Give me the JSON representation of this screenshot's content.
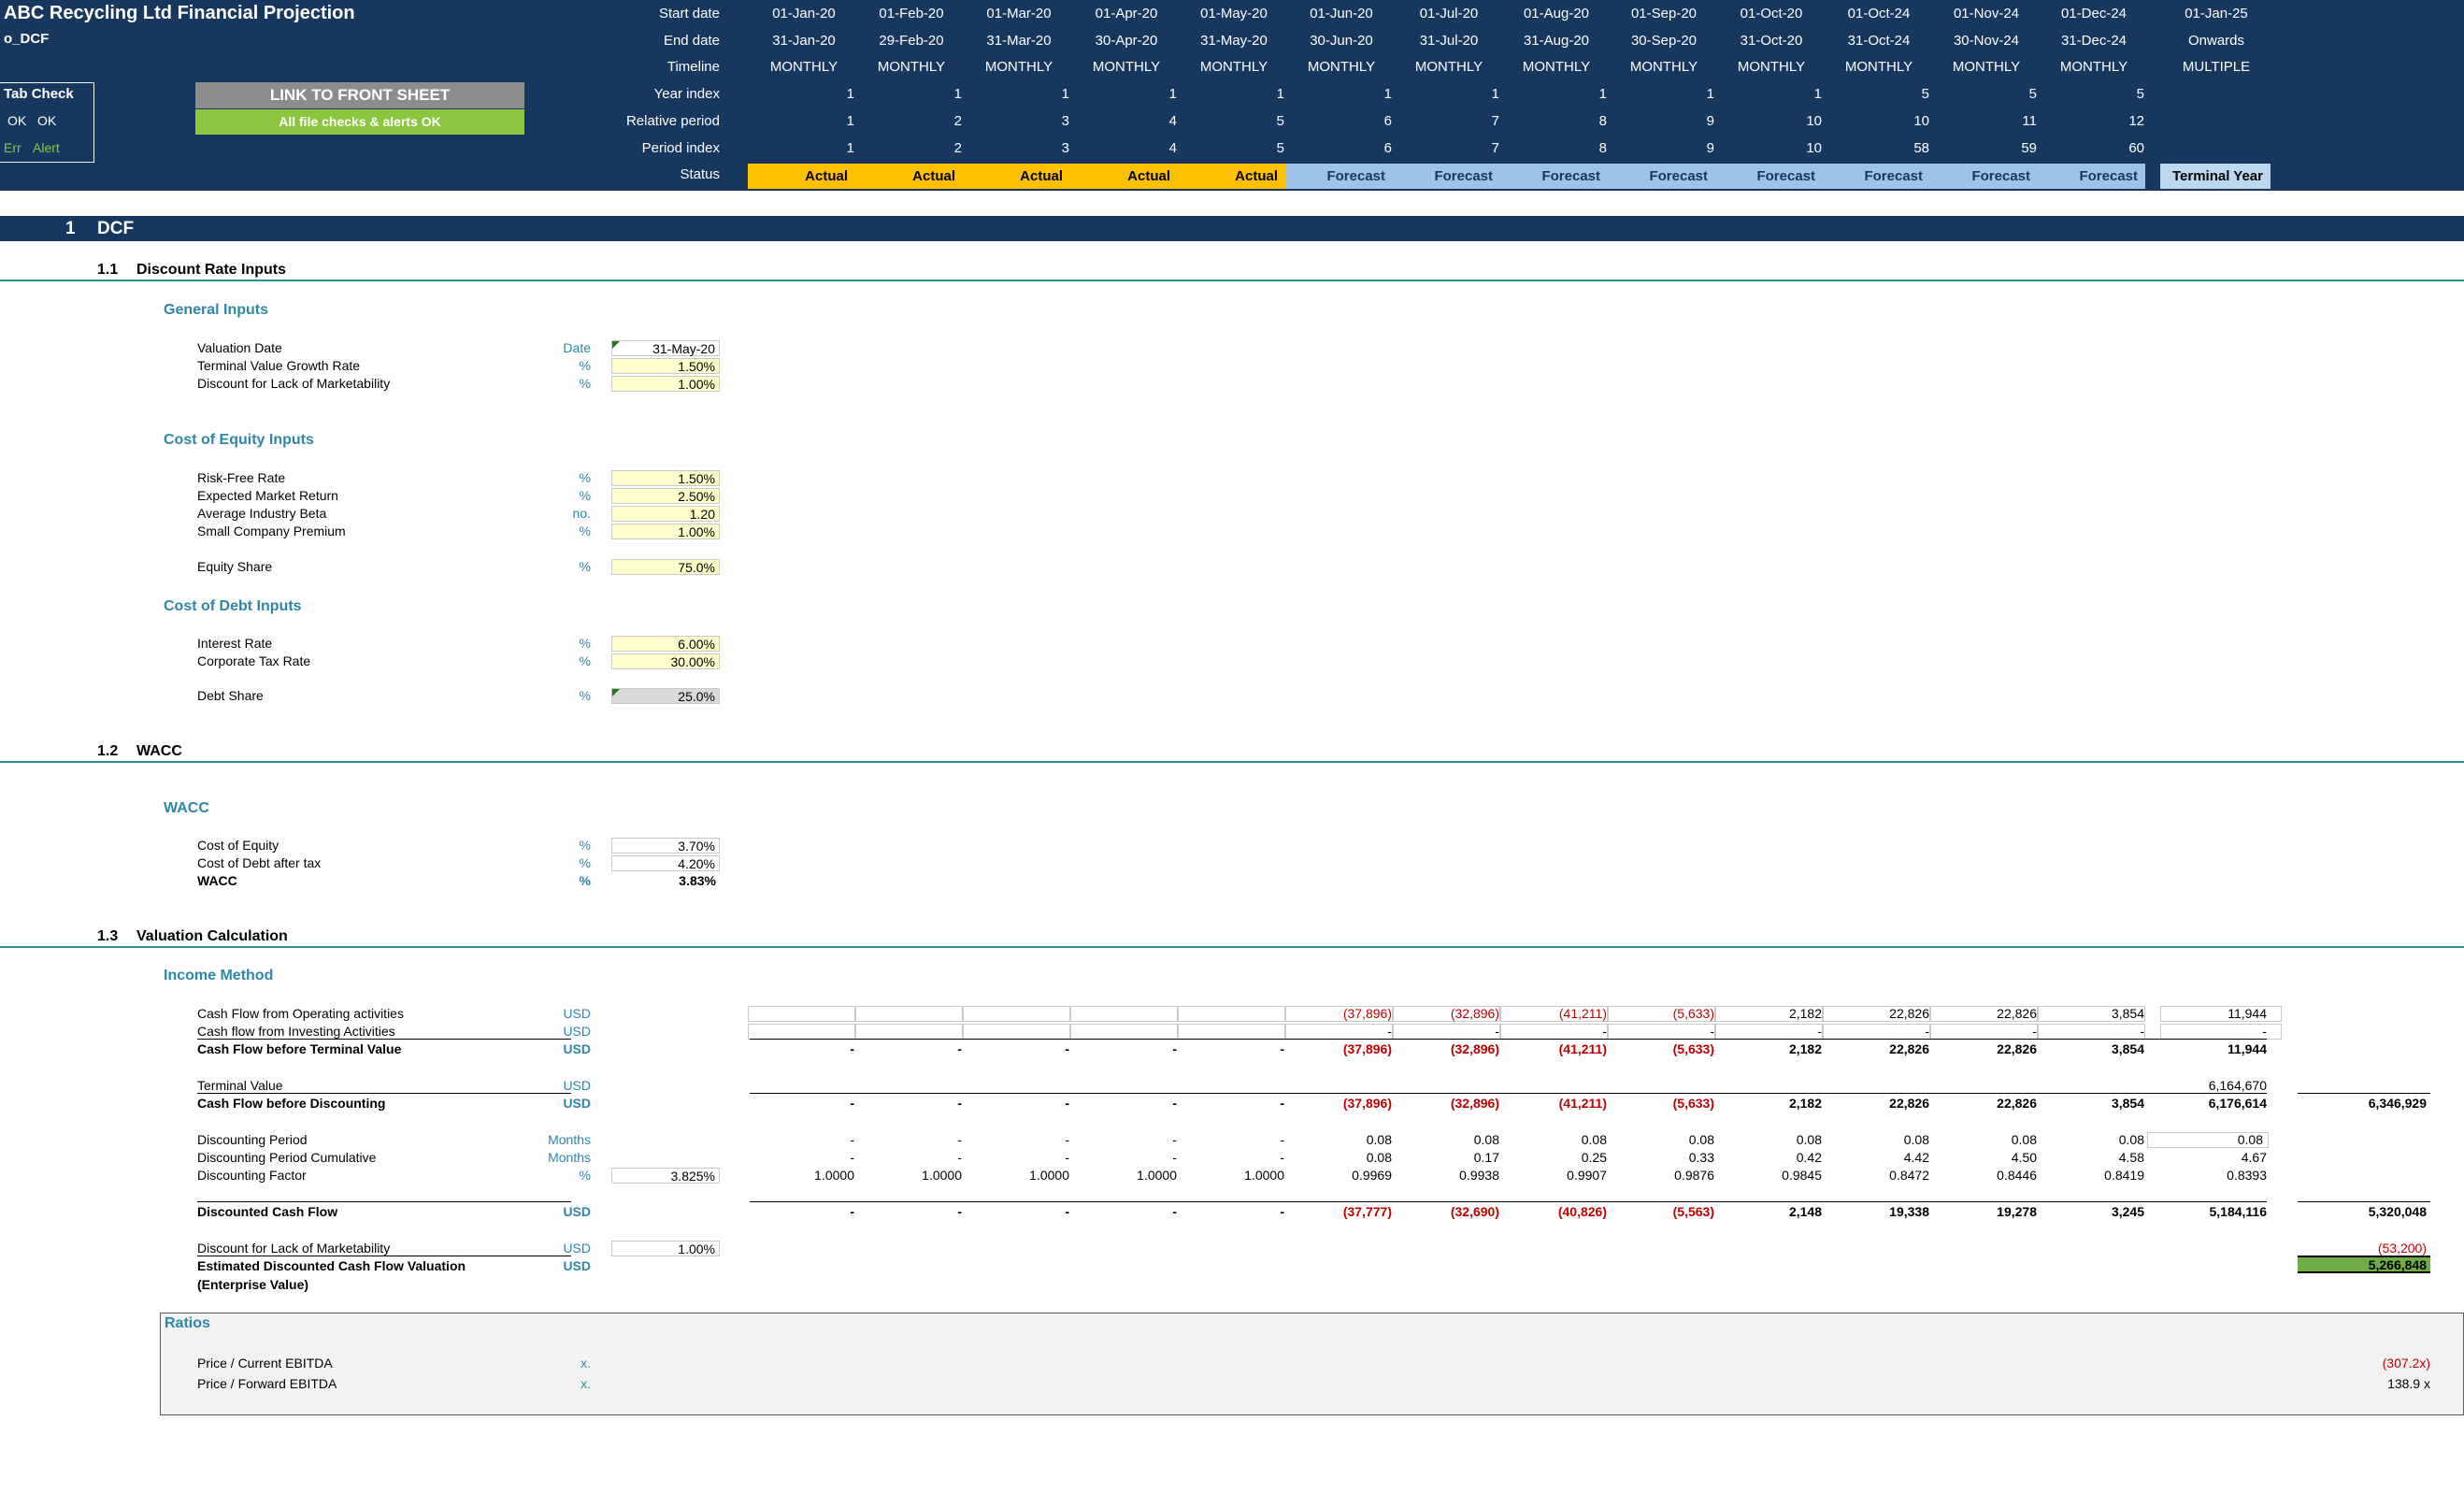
{
  "header": {
    "title": "ABC Recycling Ltd Financial Projection",
    "sheet_name": "o_DCF",
    "tab_check_label": "Tab Check",
    "ok_label1": "OK",
    "ok_label2": "OK",
    "err_label": "Err",
    "alert_label": "Alert",
    "link_button": "LINK TO FRONT SHEET",
    "checks_status": "All file checks & alerts OK",
    "row_labels": [
      "Start date",
      "End date",
      "Timeline",
      "Year index",
      "Relative period",
      "Period index",
      "Status"
    ],
    "periods": [
      {
        "start": "01-Jan-20",
        "end": "31-Jan-20",
        "timeline": "MONTHLY",
        "year": "1",
        "rel": "1",
        "idx": "1",
        "status": "Actual"
      },
      {
        "start": "01-Feb-20",
        "end": "29-Feb-20",
        "timeline": "MONTHLY",
        "year": "1",
        "rel": "2",
        "idx": "2",
        "status": "Actual"
      },
      {
        "start": "01-Mar-20",
        "end": "31-Mar-20",
        "timeline": "MONTHLY",
        "year": "1",
        "rel": "3",
        "idx": "3",
        "status": "Actual"
      },
      {
        "start": "01-Apr-20",
        "end": "30-Apr-20",
        "timeline": "MONTHLY",
        "year": "1",
        "rel": "4",
        "idx": "4",
        "status": "Actual"
      },
      {
        "start": "01-May-20",
        "end": "31-May-20",
        "timeline": "MONTHLY",
        "year": "1",
        "rel": "5",
        "idx": "5",
        "status": "Actual"
      },
      {
        "start": "01-Jun-20",
        "end": "30-Jun-20",
        "timeline": "MONTHLY",
        "year": "1",
        "rel": "6",
        "idx": "6",
        "status": "Forecast"
      },
      {
        "start": "01-Jul-20",
        "end": "31-Jul-20",
        "timeline": "MONTHLY",
        "year": "1",
        "rel": "7",
        "idx": "7",
        "status": "Forecast"
      },
      {
        "start": "01-Aug-20",
        "end": "31-Aug-20",
        "timeline": "MONTHLY",
        "year": "1",
        "rel": "8",
        "idx": "8",
        "status": "Forecast"
      },
      {
        "start": "01-Sep-20",
        "end": "30-Sep-20",
        "timeline": "MONTHLY",
        "year": "1",
        "rel": "9",
        "idx": "9",
        "status": "Forecast"
      },
      {
        "start": "01-Oct-20",
        "end": "31-Oct-20",
        "timeline": "MONTHLY",
        "year": "1",
        "rel": "10",
        "idx": "10",
        "status": "Forecast"
      },
      {
        "start": "01-Oct-24",
        "end": "31-Oct-24",
        "timeline": "MONTHLY",
        "year": "5",
        "rel": "10",
        "idx": "58",
        "status": "Forecast"
      },
      {
        "start": "01-Nov-24",
        "end": "30-Nov-24",
        "timeline": "MONTHLY",
        "year": "5",
        "rel": "11",
        "idx": "59",
        "status": "Forecast"
      },
      {
        "start": "01-Dec-24",
        "end": "31-Dec-24",
        "timeline": "MONTHLY",
        "year": "5",
        "rel": "12",
        "idx": "60",
        "status": "Forecast"
      },
      {
        "start": "01-Jan-25",
        "end": "Onwards",
        "timeline": "MULTIPLE",
        "year": "",
        "rel": "",
        "idx": "",
        "status": "Terminal Year"
      }
    ]
  },
  "section": {
    "number": "1",
    "title": "DCF"
  },
  "sub1": {
    "number": "1.1",
    "title": "Discount Rate Inputs",
    "general_title": "General Inputs",
    "general": [
      {
        "label": "Valuation Date",
        "unit": "Date",
        "value": "31-May-20"
      },
      {
        "label": "Terminal Value Growth Rate",
        "unit": "%",
        "value": "1.50%"
      },
      {
        "label": "Discount for Lack of Marketability",
        "unit": "%",
        "value": "1.00%"
      }
    ],
    "coe_title": "Cost of Equity Inputs",
    "coe": [
      {
        "label": "Risk-Free Rate",
        "unit": "%",
        "value": "1.50%"
      },
      {
        "label": "Expected Market Return",
        "unit": "%",
        "value": "2.50%"
      },
      {
        "label": "Average Industry Beta",
        "unit": "no.",
        "value": "1.20"
      },
      {
        "label": "Small Company Premium",
        "unit": "%",
        "value": "1.00%"
      }
    ],
    "equity_share": {
      "label": "Equity Share",
      "unit": "%",
      "value": "75.0%"
    },
    "cod_title": "Cost of Debt Inputs",
    "cod": [
      {
        "label": "Interest Rate",
        "unit": "%",
        "value": "6.00%"
      },
      {
        "label": "Corporate Tax Rate",
        "unit": "%",
        "value": "30.00%"
      }
    ],
    "debt_share": {
      "label": "Debt Share",
      "unit": "%",
      "value": "25.0%"
    }
  },
  "sub2": {
    "number": "1.2",
    "title": "WACC",
    "group_title": "WACC",
    "rows": [
      {
        "label": "Cost of Equity",
        "unit": "%",
        "value": "3.70%"
      },
      {
        "label": "Cost of Debt after tax",
        "unit": "%",
        "value": "4.20%"
      },
      {
        "label": "WACC",
        "unit": "%",
        "value": "3.83%"
      }
    ]
  },
  "sub3": {
    "number": "1.3",
    "title": "Valuation Calculation",
    "group_title": "Income Method",
    "cfo": {
      "label": "Cash Flow from Operating activities",
      "unit": "USD",
      "values": [
        "",
        "",
        "",
        "",
        "",
        "(37,896)",
        "(32,896)",
        "(41,211)",
        "(5,633)",
        "2,182",
        "22,826",
        "22,826",
        "3,854",
        "11,944"
      ]
    },
    "cfi": {
      "label": "Cash flow from Investing Activities",
      "unit": "USD",
      "values": [
        "",
        "",
        "",
        "",
        "",
        "-",
        "-",
        "-",
        "-",
        "-",
        "-",
        "-",
        "-",
        "-"
      ]
    },
    "cfbtv": {
      "label": "Cash Flow before Terminal Value",
      "unit": "USD",
      "values": [
        "-",
        "-",
        "-",
        "-",
        "-",
        "(37,896)",
        "(32,896)",
        "(41,211)",
        "(5,633)",
        "2,182",
        "22,826",
        "22,826",
        "3,854",
        "11,944"
      ]
    },
    "tv": {
      "label": "Terminal Value",
      "unit": "USD",
      "values": [
        "",
        "",
        "",
        "",
        "",
        "",
        "",
        "",
        "",
        "",
        "",
        "",
        "",
        "6,164,670"
      ]
    },
    "cfbd": {
      "label": "Cash Flow before Discounting",
      "unit": "USD",
      "values": [
        "-",
        "-",
        "-",
        "-",
        "-",
        "(37,896)",
        "(32,896)",
        "(41,211)",
        "(5,633)",
        "2,182",
        "22,826",
        "22,826",
        "3,854",
        "6,176,614"
      ],
      "total": "6,346,929"
    },
    "dp": {
      "label": "Discounting Period",
      "unit": "Months",
      "values": [
        "-",
        "-",
        "-",
        "-",
        "-",
        "0.08",
        "0.08",
        "0.08",
        "0.08",
        "0.08",
        "0.08",
        "0.08",
        "0.08",
        "0.08"
      ]
    },
    "dpc": {
      "label": "Discounting Period Cumulative",
      "unit": "Months",
      "values": [
        "-",
        "-",
        "-",
        "-",
        "-",
        "0.08",
        "0.17",
        "0.25",
        "0.33",
        "0.42",
        "4.42",
        "4.50",
        "4.58",
        "4.67"
      ]
    },
    "df": {
      "label": "Discounting Factor",
      "unit": "%",
      "input": "3.825%",
      "values": [
        "1.0000",
        "1.0000",
        "1.0000",
        "1.0000",
        "1.0000",
        "0.9969",
        "0.9938",
        "0.9907",
        "0.9876",
        "0.9845",
        "0.8472",
        "0.8446",
        "0.8419",
        "0.8393"
      ]
    },
    "dcf": {
      "label": "Discounted Cash Flow",
      "unit": "USD",
      "values": [
        "-",
        "-",
        "-",
        "-",
        "-",
        "(37,777)",
        "(32,690)",
        "(40,826)",
        "(5,563)",
        "2,148",
        "19,338",
        "19,278",
        "3,245",
        "5,184,116"
      ],
      "total": "5,320,048"
    },
    "dlom": {
      "label": "Discount for Lack of Marketability",
      "unit": "USD",
      "input": "1.00%",
      "total": "(53,200)"
    },
    "edcf": {
      "label": "Estimated Discounted Cash Flow Valuation",
      "label2": "(Enterprise Value)",
      "unit": "USD",
      "total": "5,266,848"
    }
  },
  "ratios": {
    "title": "Ratios",
    "rows": [
      {
        "label": "Price / Current EBITDA",
        "unit": "x.",
        "value": "(307.2x)"
      },
      {
        "label": "Price / Forward EBITDA",
        "unit": "x.",
        "value": "138.9 x"
      }
    ]
  }
}
